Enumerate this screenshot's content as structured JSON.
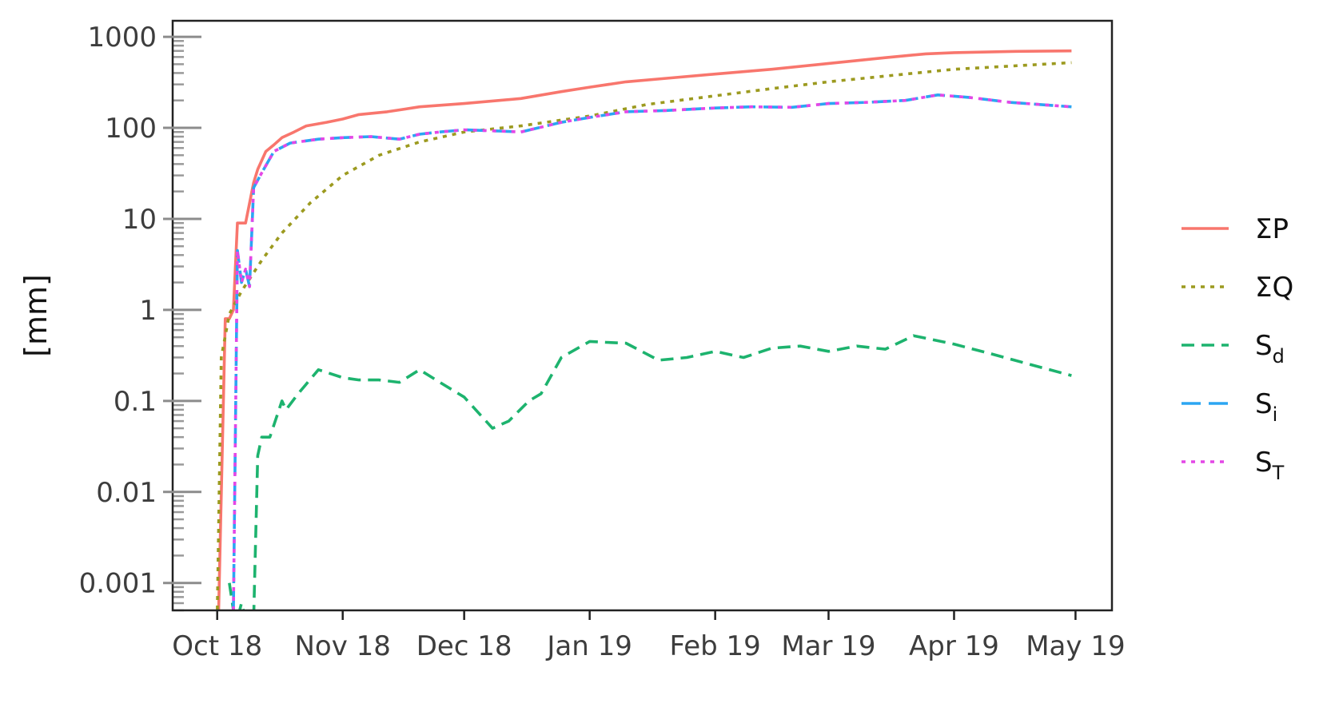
{
  "chart_data": {
    "type": "line",
    "title": "",
    "xlabel": "",
    "ylabel": "[mm]",
    "y_scale": "log",
    "ylim": [
      0.0005,
      1500
    ],
    "xlim": [
      "2018-09-20",
      "2019-05-10"
    ],
    "grid": false,
    "legend_position": "right",
    "x_ticks": [
      {
        "date": "2018-10-01",
        "label": "Oct 18"
      },
      {
        "date": "2018-11-01",
        "label": "Nov 18"
      },
      {
        "date": "2018-12-01",
        "label": "Dec 18"
      },
      {
        "date": "2019-01-01",
        "label": "Jan 19"
      },
      {
        "date": "2019-02-01",
        "label": "Feb 19"
      },
      {
        "date": "2019-03-01",
        "label": "Mar 19"
      },
      {
        "date": "2019-04-01",
        "label": "Apr 19"
      },
      {
        "date": "2019-05-01",
        "label": "May 19"
      }
    ],
    "y_ticks": [
      {
        "value": 0.001,
        "label": "0.001"
      },
      {
        "value": 0.01,
        "label": "0.01"
      },
      {
        "value": 0.1,
        "label": "0.1"
      },
      {
        "value": 1,
        "label": "1"
      },
      {
        "value": 10,
        "label": "10"
      },
      {
        "value": 100,
        "label": "100"
      },
      {
        "value": 1000,
        "label": "1000"
      }
    ],
    "series": [
      {
        "name": "ΣP",
        "label_main": "ΣP",
        "label_sub": "",
        "color": "#F8766D",
        "dash": "solid",
        "x": [
          "2018-10-01",
          "2018-10-03",
          "2018-10-04",
          "2018-10-05",
          "2018-10-06",
          "2018-10-08",
          "2018-10-10",
          "2018-10-11",
          "2018-10-13",
          "2018-10-15",
          "2018-10-17",
          "2018-10-20",
          "2018-10-23",
          "2018-10-28",
          "2018-11-01",
          "2018-11-05",
          "2018-11-12",
          "2018-11-20",
          "2018-12-01",
          "2018-12-15",
          "2018-12-25",
          "2019-01-01",
          "2019-01-10",
          "2019-01-20",
          "2019-02-01",
          "2019-02-15",
          "2019-03-01",
          "2019-03-15",
          "2019-03-25",
          "2019-04-01",
          "2019-04-15",
          "2019-04-30"
        ],
        "y": [
          0.0001,
          0.8,
          0.8,
          1.0,
          9.0,
          9.0,
          25,
          35,
          55,
          65,
          78,
          90,
          105,
          115,
          125,
          140,
          150,
          170,
          185,
          210,
          250,
          280,
          320,
          350,
          390,
          440,
          510,
          590,
          650,
          670,
          690,
          700
        ]
      },
      {
        "name": "ΣQ",
        "label_main": "ΣQ",
        "label_sub": "",
        "color": "#9C9A1F",
        "dash": "dotted",
        "x": [
          "2018-10-01",
          "2018-10-02",
          "2018-10-04",
          "2018-10-07",
          "2018-10-12",
          "2018-10-17",
          "2018-10-24",
          "2018-11-01",
          "2018-11-10",
          "2018-11-20",
          "2018-12-01",
          "2018-12-15",
          "2019-01-01",
          "2019-01-15",
          "2019-02-01",
          "2019-02-15",
          "2019-03-01",
          "2019-03-20",
          "2019-04-01",
          "2019-04-30"
        ],
        "y": [
          0.0004,
          0.3,
          0.9,
          1.6,
          3.5,
          7,
          15,
          30,
          50,
          70,
          90,
          105,
          135,
          180,
          225,
          270,
          320,
          390,
          440,
          520
        ]
      },
      {
        "name": "Sd",
        "label_main": "S",
        "label_sub": "d",
        "color": "#1DB36E",
        "dash": "dashed",
        "x": [
          "2018-10-04",
          "2018-10-05",
          "2018-10-06",
          "2018-10-07",
          "2018-10-08",
          "2018-10-10",
          "2018-10-11",
          "2018-10-12",
          "2018-10-14",
          "2018-10-17",
          "2018-10-18",
          "2018-10-21",
          "2018-10-26",
          "2018-11-01",
          "2018-11-05",
          "2018-11-10",
          "2018-11-15",
          "2018-11-20",
          "2018-11-25",
          "2018-12-01",
          "2018-12-08",
          "2018-12-12",
          "2018-12-17",
          "2018-12-20",
          "2018-12-25",
          "2019-01-01",
          "2019-01-05",
          "2019-01-10",
          "2019-01-18",
          "2019-01-25",
          "2019-02-01",
          "2019-02-08",
          "2019-02-15",
          "2019-02-22",
          "2019-03-01",
          "2019-03-08",
          "2019-03-15",
          "2019-03-22",
          "2019-04-01",
          "2019-04-10",
          "2019-04-20",
          "2019-04-30"
        ],
        "y": [
          0.001,
          0.0005,
          0.0004,
          0.0006,
          0.0004,
          0.0004,
          0.025,
          0.04,
          0.04,
          0.1,
          0.08,
          0.12,
          0.22,
          0.18,
          0.17,
          0.17,
          0.16,
          0.22,
          0.16,
          0.11,
          0.05,
          0.06,
          0.1,
          0.12,
          0.3,
          0.45,
          0.44,
          0.43,
          0.28,
          0.3,
          0.35,
          0.3,
          0.38,
          0.4,
          0.35,
          0.4,
          0.37,
          0.52,
          0.42,
          0.33,
          0.25,
          0.19
        ]
      },
      {
        "name": "Si",
        "label_main": "S",
        "label_sub": "i",
        "color": "#2BA5F2",
        "dash": "longdash",
        "x": [
          "2018-10-05",
          "2018-10-06",
          "2018-10-07",
          "2018-10-08",
          "2018-10-09",
          "2018-10-10",
          "2018-10-12",
          "2018-10-15",
          "2018-10-19",
          "2018-10-26",
          "2018-11-01",
          "2018-11-08",
          "2018-11-15",
          "2018-11-20",
          "2018-11-25",
          "2018-12-01",
          "2018-12-10",
          "2018-12-15",
          "2018-12-25",
          "2019-01-01",
          "2019-01-10",
          "2019-01-20",
          "2019-02-01",
          "2019-02-10",
          "2019-02-20",
          "2019-03-01",
          "2019-03-10",
          "2019-03-20",
          "2019-03-28",
          "2019-04-05",
          "2019-04-15",
          "2019-04-30"
        ],
        "y": [
          0.0005,
          4.5,
          2.0,
          2.8,
          1.8,
          22,
          32,
          55,
          68,
          75,
          78,
          80,
          75,
          85,
          90,
          95,
          92,
          90,
          115,
          130,
          150,
          155,
          165,
          170,
          168,
          185,
          190,
          200,
          230,
          215,
          190,
          170
        ]
      },
      {
        "name": "ST",
        "label_main": "S",
        "label_sub": "T",
        "color": "#E447E6",
        "dash": "dotted",
        "x": [
          "2018-10-05",
          "2018-10-06",
          "2018-10-07",
          "2018-10-08",
          "2018-10-09",
          "2018-10-10",
          "2018-10-12",
          "2018-10-15",
          "2018-10-19",
          "2018-10-26",
          "2018-11-01",
          "2018-11-08",
          "2018-11-15",
          "2018-11-20",
          "2018-11-25",
          "2018-12-01",
          "2018-12-10",
          "2018-12-15",
          "2018-12-25",
          "2019-01-01",
          "2019-01-10",
          "2019-01-20",
          "2019-02-01",
          "2019-02-10",
          "2019-02-20",
          "2019-03-01",
          "2019-03-10",
          "2019-03-20",
          "2019-03-28",
          "2019-04-05",
          "2019-04-15",
          "2019-04-30"
        ],
        "y": [
          0.0005,
          4.5,
          2.0,
          2.8,
          1.8,
          22,
          32,
          55,
          68,
          75,
          78,
          80,
          75,
          85,
          90,
          95,
          92,
          90,
          115,
          130,
          150,
          155,
          165,
          170,
          168,
          185,
          190,
          200,
          230,
          215,
          190,
          170
        ]
      }
    ]
  }
}
